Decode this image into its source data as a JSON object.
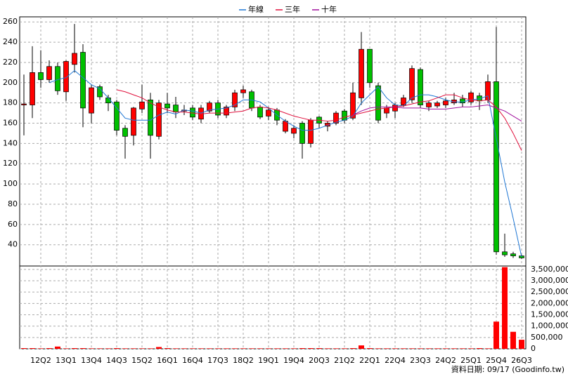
{
  "chart_data": {
    "type": "candlestick",
    "categories": [
      null,
      null,
      "12Q2",
      null,
      null,
      "13Q1",
      null,
      null,
      "13Q4",
      null,
      null,
      "14Q3",
      null,
      null,
      "15Q2",
      null,
      null,
      "16Q1",
      null,
      null,
      "16Q4",
      null,
      null,
      "17Q3",
      null,
      null,
      "18Q2",
      null,
      null,
      "19Q1",
      null,
      null,
      "19Q4",
      null,
      null,
      "20Q3",
      null,
      null,
      "21Q2",
      null,
      null,
      "22Q1",
      null,
      null,
      "22Q4",
      null,
      null,
      "23Q3",
      null,
      null,
      "24Q2",
      null,
      null,
      "25Q1",
      null,
      null,
      "25Q4",
      null,
      null,
      "26Q3"
    ],
    "open": [
      178,
      178,
      210,
      203,
      216,
      191,
      218,
      230,
      170,
      196,
      185,
      181,
      155,
      148,
      174,
      183,
      147,
      179,
      178,
      172,
      175,
      164,
      172,
      180,
      168,
      176,
      190,
      191,
      176,
      167,
      173,
      152,
      150,
      160,
      140,
      166,
      157,
      160,
      172,
      165,
      185,
      233,
      197,
      170,
      172,
      178,
      183,
      213,
      176,
      177,
      178,
      180,
      184,
      181,
      187,
      183,
      201,
      33,
      31,
      29
    ],
    "high": [
      208,
      236,
      232,
      222,
      220,
      222,
      258,
      238,
      198,
      198,
      188,
      183,
      158,
      176,
      198,
      190,
      183,
      190,
      186,
      178,
      178,
      178,
      182,
      183,
      178,
      193,
      197,
      193,
      178,
      176,
      175,
      164,
      158,
      162,
      165,
      167,
      162,
      172,
      174,
      200,
      250,
      233,
      200,
      178,
      180,
      188,
      217,
      215,
      182,
      182,
      185,
      190,
      188,
      192,
      190,
      208,
      255,
      51,
      33,
      30
    ],
    "low": [
      148,
      165,
      195,
      200,
      188,
      182,
      210,
      156,
      160,
      183,
      172,
      148,
      125,
      138,
      170,
      125,
      144,
      170,
      165,
      168,
      163,
      160,
      170,
      165,
      165,
      172,
      185,
      172,
      164,
      163,
      158,
      150,
      145,
      125,
      136,
      155,
      152,
      158,
      160,
      163,
      178,
      195,
      160,
      165,
      165,
      176,
      180,
      175,
      172,
      175,
      175,
      178,
      176,
      178,
      173,
      180,
      30,
      28,
      27,
      26
    ],
    "close": [
      179,
      210,
      203,
      216,
      192,
      221,
      229,
      175,
      195,
      186,
      180,
      153,
      147,
      175,
      181,
      148,
      180,
      175,
      171,
      173,
      166,
      175,
      180,
      168,
      176,
      190,
      193,
      175,
      166,
      173,
      163,
      162,
      155,
      140,
      163,
      160,
      160,
      170,
      163,
      190,
      233,
      200,
      163,
      175,
      178,
      185,
      214,
      178,
      180,
      180,
      182,
      183,
      180,
      190,
      182,
      201,
      33,
      30,
      29,
      27
    ],
    "up_color": "#ff0000",
    "down_color": "#00c000",
    "ylim": [
      19,
      265
    ],
    "yticks": [
      40,
      60,
      80,
      100,
      120,
      140,
      160,
      180,
      200,
      220,
      240,
      260
    ],
    "grid": true,
    "legend": "top",
    "series": [
      {
        "name": "年線",
        "color": "#1f77d4",
        "values": [
          null,
          null,
          null,
          200,
          203,
          205,
          212,
          205,
          198,
          194,
          185,
          175,
          165,
          163,
          163,
          163,
          168,
          171,
          169,
          173,
          172,
          170,
          173,
          174,
          175,
          178,
          183,
          183,
          181,
          175,
          168,
          162,
          157,
          153,
          153,
          155,
          158,
          161,
          163,
          167,
          180,
          188,
          196,
          185,
          178,
          177,
          185,
          188,
          188,
          186,
          183,
          181,
          181,
          183,
          184,
          187,
          145,
          102,
          66,
          28
        ]
      },
      {
        "name": "三年",
        "color": "#e0103c",
        "values": [
          null,
          null,
          null,
          null,
          null,
          null,
          null,
          null,
          null,
          null,
          null,
          193,
          191,
          188,
          185,
          180,
          176,
          173,
          171,
          171,
          170,
          169,
          170,
          170,
          170,
          171,
          172,
          175,
          176,
          175,
          173,
          170,
          167,
          165,
          163,
          163,
          162,
          163,
          166,
          168,
          170,
          172,
          174,
          175,
          176,
          177,
          179,
          181,
          182,
          185,
          188,
          188,
          185,
          183,
          182,
          183,
          176,
          165,
          150,
          133
        ]
      },
      {
        "name": "十年",
        "color": "#a0109c",
        "values": [
          null,
          null,
          null,
          null,
          null,
          null,
          null,
          null,
          null,
          null,
          null,
          null,
          null,
          null,
          null,
          null,
          null,
          null,
          null,
          null,
          null,
          null,
          null,
          null,
          null,
          null,
          null,
          null,
          null,
          null,
          null,
          null,
          null,
          null,
          null,
          null,
          null,
          null,
          null,
          168,
          172,
          175,
          176,
          176,
          176,
          175,
          175,
          175,
          174,
          174,
          174,
          175,
          176,
          176,
          177,
          178,
          175,
          172,
          167,
          162
        ]
      }
    ],
    "volume": {
      "color": "#ff0000",
      "values": [
        30000,
        30000,
        20000,
        30000,
        100000,
        20000,
        30000,
        30000,
        20000,
        20000,
        20000,
        30000,
        20000,
        20000,
        20000,
        20000,
        80000,
        30000,
        20000,
        20000,
        20000,
        20000,
        20000,
        20000,
        20000,
        20000,
        20000,
        20000,
        20000,
        20000,
        20000,
        20000,
        20000,
        30000,
        30000,
        30000,
        20000,
        20000,
        20000,
        30000,
        150000,
        30000,
        20000,
        20000,
        20000,
        20000,
        20000,
        20000,
        20000,
        20000,
        20000,
        20000,
        20000,
        20000,
        30000,
        20000,
        1200000,
        3600000,
        750000,
        400000
      ],
      "ylim": [
        0,
        3650000
      ],
      "yticks": [
        0,
        {
          "value": 500000,
          "label": "500,000"
        },
        {
          "value": 1000000,
          "label": "1,000,000"
        },
        {
          "value": 1500000,
          "label": "1,500,000"
        },
        {
          "value": 2000000,
          "label": "2,000,000"
        },
        {
          "value": 2500000,
          "label": "2,500,000"
        },
        {
          "value": 3000000,
          "label": "3,000,000"
        },
        {
          "value": 3500000,
          "label": "3,500,000"
        }
      ]
    }
  },
  "footer": "資料日期: 09/17  (Goodinfo.tw)"
}
